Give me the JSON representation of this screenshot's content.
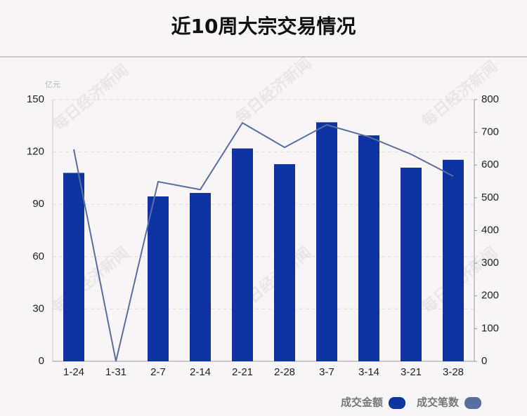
{
  "chart_data": {
    "type": "bar-line",
    "title": "近10周大宗交易情况",
    "y_unit": "亿元",
    "watermark": "每日经济新闻",
    "categories": [
      "1-24",
      "1-31",
      "2-7",
      "2-14",
      "2-21",
      "2-28",
      "3-7",
      "3-14",
      "3-21",
      "3-28"
    ],
    "series": [
      {
        "name": "成交金额",
        "type": "bar",
        "color": "#0d34a0",
        "values": [
          108,
          0,
          94.5,
          96.5,
          122,
          113,
          137,
          129.5,
          111,
          115.5
        ]
      },
      {
        "name": "成交笔数",
        "type": "line",
        "axis": "y2",
        "color": "#5a6fa0",
        "values": [
          648,
          0,
          549,
          525,
          729,
          654,
          723,
          686,
          633,
          566
        ]
      }
    ],
    "ylim": [
      0,
      150
    ],
    "yticks": [
      0,
      30,
      60,
      90,
      120,
      150
    ],
    "y2lim": [
      0,
      800
    ],
    "y2ticks": [
      0,
      100,
      200,
      300,
      400,
      500,
      600,
      700,
      800
    ],
    "grid": true
  }
}
